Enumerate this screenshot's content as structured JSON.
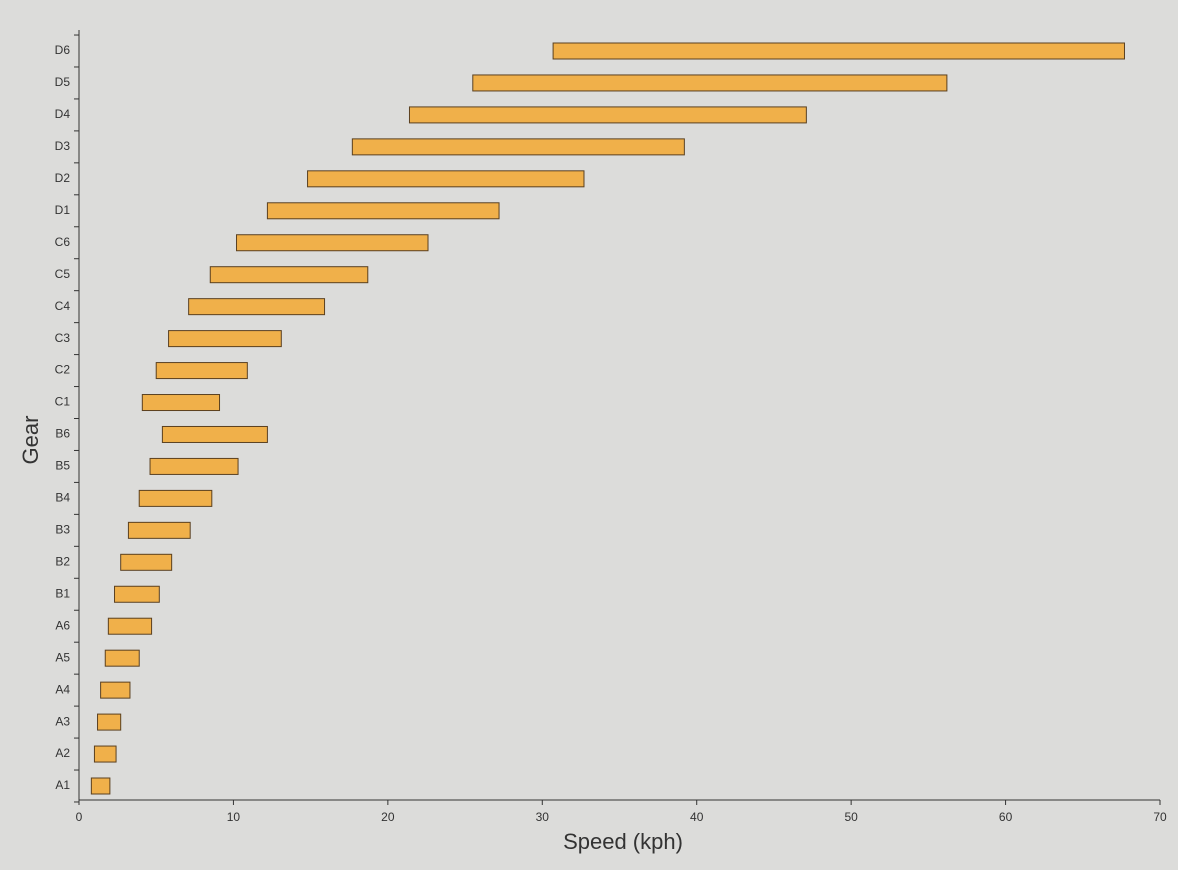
{
  "chart_data": {
    "type": "range-bar",
    "x_label": "Speed (kph)",
    "y_label": "Gear",
    "categories": [
      "A1",
      "A2",
      "A3",
      "A4",
      "A5",
      "A6",
      "B1",
      "B2",
      "B3",
      "B4",
      "B5",
      "B6",
      "C1",
      "C2",
      "C3",
      "C4",
      "C5",
      "C6",
      "D1",
      "D2",
      "D3",
      "D4",
      "D5",
      "D6"
    ],
    "start": [
      0.8,
      1.0,
      1.2,
      1.4,
      1.7,
      1.9,
      2.3,
      2.7,
      3.2,
      3.9,
      4.6,
      5.4,
      4.1,
      5.0,
      5.8,
      7.1,
      8.5,
      10.2,
      12.2,
      14.8,
      17.7,
      21.4,
      25.5,
      30.7
    ],
    "end": [
      2.0,
      2.4,
      2.7,
      3.3,
      3.9,
      4.7,
      5.2,
      6.0,
      7.2,
      8.6,
      10.3,
      12.2,
      9.1,
      10.9,
      13.1,
      15.9,
      18.7,
      22.6,
      27.2,
      32.7,
      39.2,
      47.1,
      56.2,
      67.7
    ],
    "color": "#f0b04a",
    "xlim": [
      0,
      70
    ],
    "xticks": [
      0,
      10,
      20,
      30,
      40,
      50,
      60,
      70
    ]
  }
}
